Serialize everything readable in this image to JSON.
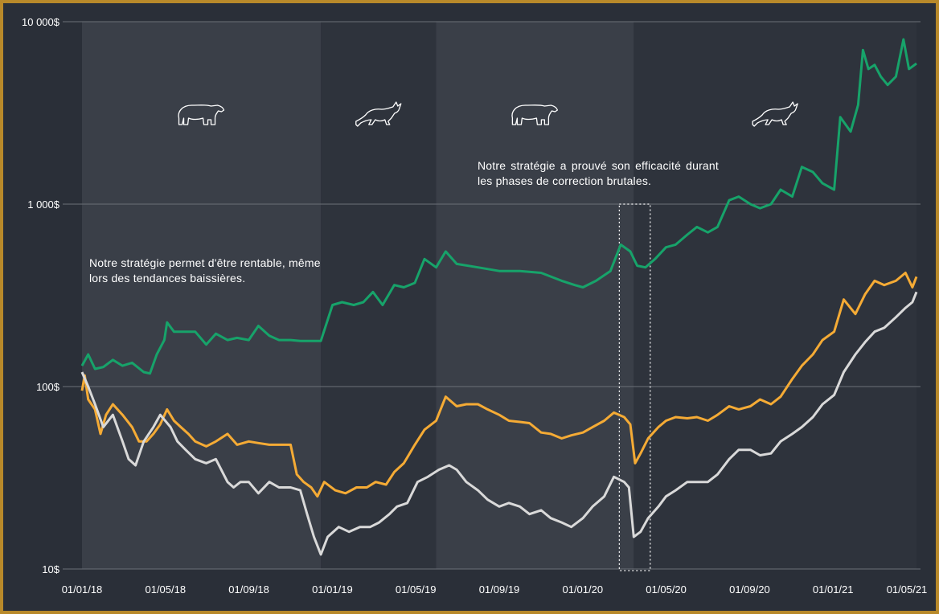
{
  "chart_data": {
    "type": "line",
    "y_scale": "log",
    "ylim": [
      10,
      10000
    ],
    "y_ticks": [
      {
        "value": 10000,
        "label": "10 000$"
      },
      {
        "value": 1000,
        "label": "1 000$"
      },
      {
        "value": 100,
        "label": "100$"
      },
      {
        "value": 10,
        "label": "10$"
      }
    ],
    "x_ticks": [
      "01/01/18",
      "01/05/18",
      "01/09/18",
      "01/01/19",
      "01/05/19",
      "01/09/19",
      "01/01/20",
      "01/05/20",
      "01/09/20",
      "01/01/21",
      "01/05/21"
    ],
    "x_range": [
      "2018-01-01",
      "2021-05-01"
    ],
    "grid": "horizontal",
    "legend": "none",
    "market_phases": [
      {
        "start": "2018-01-01",
        "end": "2018-12-15",
        "type": "bear",
        "icon": "bear-icon"
      },
      {
        "start": "2018-12-15",
        "end": "2019-06-01",
        "type": "bull",
        "icon": "bull-icon"
      },
      {
        "start": "2019-06-01",
        "end": "2020-03-15",
        "type": "bear",
        "icon": "bear-icon"
      },
      {
        "start": "2020-03-15",
        "end": "2021-05-01",
        "type": "bull",
        "icon": "bull-icon"
      }
    ],
    "highlight_period": {
      "start": "2020-03-01",
      "end": "2020-04-01",
      "y_range": [
        10,
        1000
      ]
    },
    "annotations": [
      "Notre stratégie permet d'être rentable, même lors des tendances baissières.",
      "Notre stratégie a prouvé son efficacité durant les phases de correction brutales."
    ],
    "series": [
      {
        "color": "#17a36a",
        "points": [
          [
            "2018-01-01",
            130
          ],
          [
            "2018-01-10",
            150
          ],
          [
            "2018-01-20",
            125
          ],
          [
            "2018-02-01",
            128
          ],
          [
            "2018-02-15",
            140
          ],
          [
            "2018-03-01",
            130
          ],
          [
            "2018-03-15",
            135
          ],
          [
            "2018-04-01",
            120
          ],
          [
            "2018-04-10",
            118
          ],
          [
            "2018-04-20",
            150
          ],
          [
            "2018-05-01",
            180
          ],
          [
            "2018-05-05",
            225
          ],
          [
            "2018-05-15",
            200
          ],
          [
            "2018-06-01",
            200
          ],
          [
            "2018-06-15",
            200
          ],
          [
            "2018-07-01",
            170
          ],
          [
            "2018-07-15",
            195
          ],
          [
            "2018-08-01",
            180
          ],
          [
            "2018-08-15",
            185
          ],
          [
            "2018-09-01",
            180
          ],
          [
            "2018-09-15",
            215
          ],
          [
            "2018-10-01",
            190
          ],
          [
            "2018-10-15",
            180
          ],
          [
            "2018-11-01",
            180
          ],
          [
            "2018-11-15",
            178
          ],
          [
            "2018-12-01",
            178
          ],
          [
            "2018-12-15",
            178
          ],
          [
            "2019-01-01",
            280
          ],
          [
            "2019-01-15",
            290
          ],
          [
            "2019-02-01",
            280
          ],
          [
            "2019-02-15",
            290
          ],
          [
            "2019-03-01",
            330
          ],
          [
            "2019-03-15",
            280
          ],
          [
            "2019-04-01",
            360
          ],
          [
            "2019-04-15",
            350
          ],
          [
            "2019-05-01",
            370
          ],
          [
            "2019-05-15",
            500
          ],
          [
            "2019-06-01",
            450
          ],
          [
            "2019-06-15",
            550
          ],
          [
            "2019-07-01",
            470
          ],
          [
            "2019-08-01",
            450
          ],
          [
            "2019-09-01",
            430
          ],
          [
            "2019-10-01",
            430
          ],
          [
            "2019-11-01",
            420
          ],
          [
            "2019-12-01",
            380
          ],
          [
            "2019-12-20",
            360
          ],
          [
            "2020-01-01",
            350
          ],
          [
            "2020-01-20",
            380
          ],
          [
            "2020-02-10",
            430
          ],
          [
            "2020-02-25",
            600
          ],
          [
            "2020-03-10",
            550
          ],
          [
            "2020-03-20",
            460
          ],
          [
            "2020-04-01",
            450
          ],
          [
            "2020-04-15",
            500
          ],
          [
            "2020-05-01",
            580
          ],
          [
            "2020-05-15",
            600
          ],
          [
            "2020-06-01",
            680
          ],
          [
            "2020-06-15",
            750
          ],
          [
            "2020-07-01",
            700
          ],
          [
            "2020-07-15",
            750
          ],
          [
            "2020-08-01",
            1050
          ],
          [
            "2020-08-15",
            1100
          ],
          [
            "2020-09-01",
            1000
          ],
          [
            "2020-09-15",
            950
          ],
          [
            "2020-10-01",
            1000
          ],
          [
            "2020-10-15",
            1200
          ],
          [
            "2020-11-01",
            1100
          ],
          [
            "2020-11-15",
            1600
          ],
          [
            "2020-12-01",
            1500
          ],
          [
            "2020-12-15",
            1300
          ],
          [
            "2021-01-01",
            1200
          ],
          [
            "2021-01-10",
            3000
          ],
          [
            "2021-01-25",
            2500
          ],
          [
            "2021-02-05",
            3500
          ],
          [
            "2021-02-12",
            7000
          ],
          [
            "2021-02-20",
            5500
          ],
          [
            "2021-03-01",
            5800
          ],
          [
            "2021-03-10",
            5000
          ],
          [
            "2021-03-20",
            4500
          ],
          [
            "2021-04-01",
            5000
          ],
          [
            "2021-04-12",
            8000
          ],
          [
            "2021-04-20",
            5500
          ],
          [
            "2021-05-01",
            5900
          ]
        ]
      },
      {
        "color": "#f5ab35",
        "points": [
          [
            "2018-01-01",
            95
          ],
          [
            "2018-01-05",
            115
          ],
          [
            "2018-01-10",
            85
          ],
          [
            "2018-01-20",
            75
          ],
          [
            "2018-01-28",
            55
          ],
          [
            "2018-02-05",
            70
          ],
          [
            "2018-02-15",
            80
          ],
          [
            "2018-03-01",
            70
          ],
          [
            "2018-03-15",
            60
          ],
          [
            "2018-03-25",
            50
          ],
          [
            "2018-04-05",
            50
          ],
          [
            "2018-04-15",
            55
          ],
          [
            "2018-04-25",
            62
          ],
          [
            "2018-05-05",
            75
          ],
          [
            "2018-05-15",
            65
          ],
          [
            "2018-05-25",
            60
          ],
          [
            "2018-06-05",
            55
          ],
          [
            "2018-06-15",
            50
          ],
          [
            "2018-07-01",
            47
          ],
          [
            "2018-07-15",
            50
          ],
          [
            "2018-08-01",
            55
          ],
          [
            "2018-08-15",
            48
          ],
          [
            "2018-09-01",
            50
          ],
          [
            "2018-09-15",
            49
          ],
          [
            "2018-10-01",
            48
          ],
          [
            "2018-10-15",
            48
          ],
          [
            "2018-11-01",
            48
          ],
          [
            "2018-11-10",
            33
          ],
          [
            "2018-11-20",
            30
          ],
          [
            "2018-12-01",
            28
          ],
          [
            "2018-12-10",
            25
          ],
          [
            "2018-12-20",
            30
          ],
          [
            "2019-01-05",
            27
          ],
          [
            "2019-01-20",
            26
          ],
          [
            "2019-02-05",
            28
          ],
          [
            "2019-02-20",
            28
          ],
          [
            "2019-03-05",
            30
          ],
          [
            "2019-03-20",
            29
          ],
          [
            "2019-04-01",
            34
          ],
          [
            "2019-04-15",
            38
          ],
          [
            "2019-05-01",
            48
          ],
          [
            "2019-05-15",
            58
          ],
          [
            "2019-06-01",
            65
          ],
          [
            "2019-06-15",
            88
          ],
          [
            "2019-07-01",
            78
          ],
          [
            "2019-07-15",
            80
          ],
          [
            "2019-08-01",
            80
          ],
          [
            "2019-08-15",
            75
          ],
          [
            "2019-09-01",
            70
          ],
          [
            "2019-09-15",
            65
          ],
          [
            "2019-10-01",
            64
          ],
          [
            "2019-10-15",
            63
          ],
          [
            "2019-11-01",
            56
          ],
          [
            "2019-11-15",
            55
          ],
          [
            "2019-12-01",
            52
          ],
          [
            "2019-12-15",
            54
          ],
          [
            "2020-01-01",
            56
          ],
          [
            "2020-01-15",
            60
          ],
          [
            "2020-02-01",
            65
          ],
          [
            "2020-02-15",
            72
          ],
          [
            "2020-03-01",
            68
          ],
          [
            "2020-03-10",
            62
          ],
          [
            "2020-03-17",
            38
          ],
          [
            "2020-03-25",
            43
          ],
          [
            "2020-04-05",
            52
          ],
          [
            "2020-04-20",
            60
          ],
          [
            "2020-05-01",
            65
          ],
          [
            "2020-05-15",
            68
          ],
          [
            "2020-06-01",
            67
          ],
          [
            "2020-06-15",
            68
          ],
          [
            "2020-07-01",
            65
          ],
          [
            "2020-07-15",
            70
          ],
          [
            "2020-08-01",
            78
          ],
          [
            "2020-08-15",
            75
          ],
          [
            "2020-09-01",
            78
          ],
          [
            "2020-09-15",
            85
          ],
          [
            "2020-10-01",
            80
          ],
          [
            "2020-10-15",
            88
          ],
          [
            "2020-11-01",
            110
          ],
          [
            "2020-11-15",
            130
          ],
          [
            "2020-12-01",
            150
          ],
          [
            "2020-12-15",
            180
          ],
          [
            "2021-01-01",
            200
          ],
          [
            "2021-01-15",
            300
          ],
          [
            "2021-02-01",
            250
          ],
          [
            "2021-02-15",
            320
          ],
          [
            "2021-03-01",
            380
          ],
          [
            "2021-03-15",
            360
          ],
          [
            "2021-04-01",
            380
          ],
          [
            "2021-04-15",
            420
          ],
          [
            "2021-04-25",
            350
          ],
          [
            "2021-05-01",
            400
          ]
        ]
      },
      {
        "color": "#d9d9d9",
        "points": [
          [
            "2018-01-01",
            120
          ],
          [
            "2018-01-10",
            100
          ],
          [
            "2018-01-20",
            80
          ],
          [
            "2018-02-01",
            60
          ],
          [
            "2018-02-15",
            70
          ],
          [
            "2018-03-01",
            50
          ],
          [
            "2018-03-10",
            40
          ],
          [
            "2018-03-20",
            37
          ],
          [
            "2018-04-01",
            50
          ],
          [
            "2018-04-15",
            60
          ],
          [
            "2018-04-25",
            70
          ],
          [
            "2018-05-10",
            60
          ],
          [
            "2018-05-20",
            50
          ],
          [
            "2018-06-01",
            45
          ],
          [
            "2018-06-15",
            40
          ],
          [
            "2018-07-01",
            38
          ],
          [
            "2018-07-15",
            40
          ],
          [
            "2018-08-01",
            30
          ],
          [
            "2018-08-10",
            28
          ],
          [
            "2018-08-20",
            30
          ],
          [
            "2018-09-01",
            30
          ],
          [
            "2018-09-15",
            26
          ],
          [
            "2018-10-01",
            30
          ],
          [
            "2018-10-15",
            28
          ],
          [
            "2018-11-01",
            28
          ],
          [
            "2018-11-15",
            27
          ],
          [
            "2018-11-25",
            20
          ],
          [
            "2018-12-05",
            15
          ],
          [
            "2018-12-15",
            12
          ],
          [
            "2018-12-25",
            15
          ],
          [
            "2019-01-10",
            17
          ],
          [
            "2019-01-25",
            16
          ],
          [
            "2019-02-10",
            17
          ],
          [
            "2019-02-25",
            17
          ],
          [
            "2019-03-10",
            18
          ],
          [
            "2019-03-25",
            20
          ],
          [
            "2019-04-05",
            22
          ],
          [
            "2019-04-20",
            23
          ],
          [
            "2019-05-05",
            30
          ],
          [
            "2019-05-20",
            32
          ],
          [
            "2019-06-05",
            35
          ],
          [
            "2019-06-20",
            37
          ],
          [
            "2019-07-01",
            35
          ],
          [
            "2019-07-15",
            30
          ],
          [
            "2019-08-01",
            27
          ],
          [
            "2019-08-15",
            24
          ],
          [
            "2019-09-01",
            22
          ],
          [
            "2019-09-15",
            23
          ],
          [
            "2019-10-01",
            22
          ],
          [
            "2019-10-15",
            20
          ],
          [
            "2019-11-01",
            21
          ],
          [
            "2019-11-15",
            19
          ],
          [
            "2019-12-01",
            18
          ],
          [
            "2019-12-15",
            17
          ],
          [
            "2020-01-01",
            19
          ],
          [
            "2020-01-15",
            22
          ],
          [
            "2020-02-01",
            25
          ],
          [
            "2020-02-15",
            32
          ],
          [
            "2020-03-01",
            30
          ],
          [
            "2020-03-08",
            28
          ],
          [
            "2020-03-15",
            15
          ],
          [
            "2020-03-25",
            16
          ],
          [
            "2020-04-05",
            19
          ],
          [
            "2020-04-20",
            22
          ],
          [
            "2020-05-01",
            25
          ],
          [
            "2020-05-15",
            27
          ],
          [
            "2020-06-01",
            30
          ],
          [
            "2020-06-15",
            30
          ],
          [
            "2020-07-01",
            30
          ],
          [
            "2020-07-15",
            33
          ],
          [
            "2020-08-01",
            40
          ],
          [
            "2020-08-15",
            45
          ],
          [
            "2020-09-01",
            45
          ],
          [
            "2020-09-15",
            42
          ],
          [
            "2020-10-01",
            43
          ],
          [
            "2020-10-15",
            50
          ],
          [
            "2020-11-01",
            55
          ],
          [
            "2020-11-15",
            60
          ],
          [
            "2020-12-01",
            68
          ],
          [
            "2020-12-15",
            80
          ],
          [
            "2021-01-01",
            90
          ],
          [
            "2021-01-15",
            120
          ],
          [
            "2021-02-01",
            150
          ],
          [
            "2021-02-15",
            175
          ],
          [
            "2021-03-01",
            200
          ],
          [
            "2021-03-15",
            210
          ],
          [
            "2021-04-01",
            240
          ],
          [
            "2021-04-15",
            270
          ],
          [
            "2021-04-25",
            290
          ],
          [
            "2021-05-01",
            330
          ]
        ]
      }
    ]
  }
}
